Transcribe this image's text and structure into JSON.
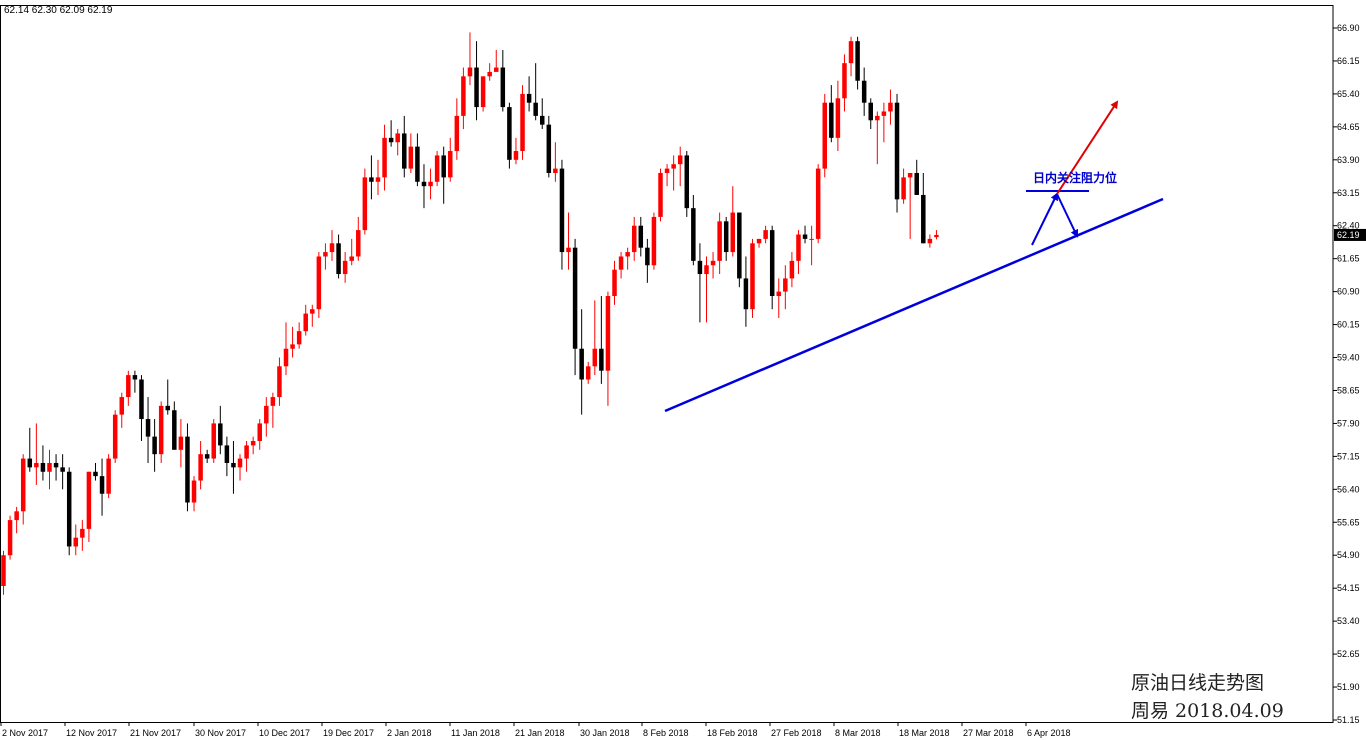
{
  "ohlc_header": "62.14 62.30 62.09 62.19",
  "last_price_label": "62.19",
  "annotation_text": "日内关注阻力位",
  "caption_line1": "原油日线走势图",
  "caption_line2": "周易 2018.04.09",
  "colors": {
    "up": "#ff0000",
    "down": "#000000",
    "trendline": "#0000dd",
    "arrow_up": "#e00000",
    "arrow_blue": "#0000dd"
  },
  "chart_data": {
    "type": "candlestick",
    "title": "",
    "ylim": [
      51.1,
      67.3
    ],
    "yticks": [
      "66.90",
      "66.15",
      "65.40",
      "64.65",
      "63.90",
      "63.15",
      "62.40",
      "61.65",
      "60.90",
      "60.15",
      "59.40",
      "58.65",
      "57.90",
      "57.15",
      "56.40",
      "55.65",
      "54.90",
      "54.15",
      "53.40",
      "52.65",
      "51.90",
      "51.15"
    ],
    "xticks": [
      "2 Nov 2017",
      "12 Nov 2017",
      "21 Nov 2017",
      "30 Nov 2017",
      "10 Dec 2017",
      "19 Dec 2017",
      "2 Jan 2018",
      "11 Jan 2018",
      "21 Jan 2018",
      "30 Jan 2018",
      "8 Feb 2018",
      "18 Feb 2018",
      "27 Feb 2018",
      "8 Mar 2018",
      "18 Mar 2018",
      "27 Mar 2018",
      "6 Apr 2018"
    ],
    "candles": [
      [
        54.2,
        55.0,
        54.0,
        54.9
      ],
      [
        54.9,
        55.8,
        54.8,
        55.7
      ],
      [
        55.7,
        56.0,
        55.4,
        55.9
      ],
      [
        55.9,
        57.2,
        55.6,
        57.1
      ],
      [
        57.1,
        57.8,
        56.8,
        56.9
      ],
      [
        56.9,
        57.9,
        56.5,
        57.0
      ],
      [
        57.0,
        57.4,
        56.6,
        56.8
      ],
      [
        56.8,
        57.3,
        56.4,
        57.0
      ],
      [
        57.0,
        57.2,
        56.6,
        56.9
      ],
      [
        56.9,
        57.2,
        56.4,
        56.8
      ],
      [
        56.8,
        56.9,
        54.9,
        55.1
      ],
      [
        55.1,
        55.6,
        54.9,
        55.3
      ],
      [
        55.3,
        55.7,
        55.0,
        55.5
      ],
      [
        55.5,
        56.8,
        55.2,
        56.8
      ],
      [
        56.8,
        57.0,
        56.6,
        56.7
      ],
      [
        56.7,
        57.1,
        55.8,
        56.3
      ],
      [
        56.3,
        57.2,
        56.2,
        57.1
      ],
      [
        57.1,
        58.2,
        57.0,
        58.1
      ],
      [
        58.1,
        58.6,
        57.8,
        58.5
      ],
      [
        58.5,
        59.1,
        58.3,
        59.0
      ],
      [
        59.0,
        59.1,
        58.6,
        58.9
      ],
      [
        58.9,
        59.0,
        57.5,
        58.0
      ],
      [
        58.0,
        58.5,
        57.0,
        57.6
      ],
      [
        57.6,
        58.0,
        56.8,
        57.2
      ],
      [
        57.2,
        58.4,
        57.0,
        58.3
      ],
      [
        58.3,
        58.9,
        58.1,
        58.2
      ],
      [
        58.2,
        58.4,
        57.3,
        57.3
      ],
      [
        57.3,
        58.0,
        56.9,
        57.6
      ],
      [
        57.6,
        57.9,
        55.9,
        56.1
      ],
      [
        56.1,
        56.7,
        55.9,
        56.6
      ],
      [
        56.6,
        57.5,
        56.4,
        57.2
      ],
      [
        57.2,
        57.3,
        57.0,
        57.1
      ],
      [
        57.1,
        58.0,
        57.0,
        57.9
      ],
      [
        57.9,
        58.3,
        57.2,
        57.4
      ],
      [
        57.4,
        57.6,
        56.7,
        57.0
      ],
      [
        57.0,
        57.5,
        56.3,
        56.9
      ],
      [
        56.9,
        57.2,
        56.6,
        57.1
      ],
      [
        57.1,
        57.5,
        56.8,
        57.4
      ],
      [
        57.4,
        57.6,
        57.2,
        57.5
      ],
      [
        57.5,
        58.0,
        57.3,
        57.9
      ],
      [
        57.9,
        58.5,
        57.6,
        58.3
      ],
      [
        58.3,
        58.6,
        57.8,
        58.5
      ],
      [
        58.5,
        59.4,
        58.3,
        59.2
      ],
      [
        59.2,
        60.2,
        59.0,
        59.6
      ],
      [
        59.6,
        60.1,
        59.4,
        59.7
      ],
      [
        59.7,
        60.2,
        59.6,
        60.0
      ],
      [
        60.0,
        60.6,
        59.9,
        60.4
      ],
      [
        60.4,
        60.6,
        60.1,
        60.5
      ],
      [
        60.5,
        61.8,
        60.3,
        61.7
      ],
      [
        61.7,
        62.0,
        61.4,
        61.8
      ],
      [
        61.8,
        62.3,
        61.6,
        62.0
      ],
      [
        62.0,
        62.2,
        61.2,
        61.3
      ],
      [
        61.3,
        61.8,
        61.1,
        61.6
      ],
      [
        61.6,
        62.1,
        61.5,
        61.7
      ],
      [
        61.7,
        62.6,
        61.6,
        62.3
      ],
      [
        62.3,
        63.7,
        62.2,
        63.5
      ],
      [
        63.5,
        64.0,
        63.0,
        63.4
      ],
      [
        63.4,
        63.9,
        63.1,
        63.5
      ],
      [
        63.5,
        64.7,
        63.2,
        64.4
      ],
      [
        64.4,
        64.8,
        64.2,
        64.3
      ],
      [
        64.3,
        64.6,
        64.0,
        64.5
      ],
      [
        64.5,
        64.9,
        63.5,
        63.7
      ],
      [
        63.7,
        64.5,
        63.6,
        64.2
      ],
      [
        64.2,
        64.5,
        63.3,
        63.4
      ],
      [
        63.4,
        63.8,
        62.8,
        63.3
      ],
      [
        63.3,
        63.7,
        63.0,
        63.4
      ],
      [
        63.4,
        64.1,
        63.3,
        64.0
      ],
      [
        64.0,
        64.2,
        62.9,
        63.5
      ],
      [
        63.5,
        64.4,
        63.4,
        64.1
      ],
      [
        64.1,
        65.3,
        63.9,
        64.9
      ],
      [
        64.9,
        66.0,
        64.6,
        65.8
      ],
      [
        65.8,
        66.8,
        65.6,
        66.0
      ],
      [
        66.0,
        66.6,
        64.8,
        65.1
      ],
      [
        65.1,
        65.8,
        65.0,
        65.8
      ],
      [
        65.8,
        66.1,
        65.7,
        65.9
      ],
      [
        65.9,
        66.4,
        66.0,
        66.0
      ],
      [
        66.0,
        66.4,
        65.0,
        65.1
      ],
      [
        65.1,
        65.2,
        63.7,
        63.9
      ],
      [
        63.9,
        64.4,
        63.8,
        64.1
      ],
      [
        64.1,
        65.6,
        63.9,
        65.4
      ],
      [
        65.4,
        65.8,
        65.0,
        65.2
      ],
      [
        65.2,
        66.1,
        64.8,
        64.9
      ],
      [
        64.9,
        65.3,
        64.6,
        64.7
      ],
      [
        64.7,
        64.9,
        63.5,
        63.6
      ],
      [
        63.6,
        64.3,
        63.4,
        63.7
      ],
      [
        63.7,
        63.9,
        61.4,
        61.8
      ],
      [
        61.8,
        62.7,
        61.4,
        61.9
      ],
      [
        61.9,
        62.1,
        59.0,
        59.6
      ],
      [
        59.6,
        60.5,
        58.1,
        58.9
      ],
      [
        58.9,
        59.3,
        58.8,
        59.2
      ],
      [
        59.2,
        60.7,
        59.0,
        59.6
      ],
      [
        59.6,
        60.8,
        58.8,
        59.1
      ],
      [
        59.1,
        60.9,
        58.3,
        60.8
      ],
      [
        60.8,
        61.6,
        60.6,
        61.4
      ],
      [
        61.4,
        61.8,
        61.2,
        61.7
      ],
      [
        61.7,
        61.9,
        61.4,
        61.8
      ],
      [
        61.8,
        62.6,
        61.6,
        62.4
      ],
      [
        62.4,
        62.6,
        61.7,
        61.9
      ],
      [
        61.9,
        62.1,
        61.1,
        61.5
      ],
      [
        61.5,
        62.7,
        61.4,
        62.6
      ],
      [
        62.6,
        63.7,
        62.5,
        63.6
      ],
      [
        63.6,
        63.8,
        63.3,
        63.7
      ],
      [
        63.7,
        64.0,
        63.2,
        63.8
      ],
      [
        63.8,
        64.2,
        63.3,
        64.0
      ],
      [
        64.0,
        64.1,
        62.6,
        62.8
      ],
      [
        62.8,
        63.1,
        61.5,
        61.6
      ],
      [
        61.6,
        62.0,
        60.2,
        61.3
      ],
      [
        61.3,
        61.7,
        60.2,
        61.5
      ],
      [
        61.5,
        61.8,
        61.2,
        61.6
      ],
      [
        61.6,
        62.7,
        61.3,
        62.5
      ],
      [
        62.5,
        62.6,
        61.6,
        61.8
      ],
      [
        61.8,
        63.3,
        61.7,
        62.7
      ],
      [
        62.7,
        62.7,
        61.0,
        61.2
      ],
      [
        61.2,
        61.7,
        60.1,
        60.5
      ],
      [
        60.5,
        62.1,
        60.3,
        62.0
      ],
      [
        62.0,
        62.1,
        61.9,
        62.1
      ],
      [
        62.1,
        62.4,
        62.0,
        62.3
      ],
      [
        62.3,
        62.4,
        60.5,
        60.8
      ],
      [
        60.8,
        61.2,
        60.3,
        60.9
      ],
      [
        60.9,
        61.5,
        60.5,
        61.2
      ],
      [
        61.2,
        61.8,
        61.0,
        61.6
      ],
      [
        61.6,
        62.3,
        61.3,
        62.2
      ],
      [
        62.2,
        62.4,
        62.0,
        62.1
      ],
      [
        62.1,
        62.4,
        61.5,
        62.1
      ],
      [
        62.1,
        63.8,
        62.0,
        63.7
      ],
      [
        63.7,
        65.4,
        63.5,
        65.2
      ],
      [
        65.2,
        65.6,
        64.3,
        64.4
      ],
      [
        64.4,
        65.7,
        64.1,
        65.3
      ],
      [
        65.3,
        66.3,
        65.0,
        66.1
      ],
      [
        66.1,
        66.7,
        65.8,
        66.6
      ],
      [
        66.6,
        66.7,
        65.5,
        65.7
      ],
      [
        65.7,
        66.0,
        64.9,
        65.2
      ],
      [
        65.2,
        65.3,
        64.6,
        64.8
      ],
      [
        64.8,
        65.0,
        63.8,
        64.9
      ],
      [
        64.9,
        65.2,
        64.3,
        65.0
      ],
      [
        65.0,
        65.5,
        64.7,
        65.2
      ],
      [
        65.2,
        65.4,
        62.7,
        63.0
      ],
      [
        63.0,
        63.7,
        62.9,
        63.5
      ],
      [
        63.5,
        63.6,
        62.1,
        63.6
      ],
      [
        63.6,
        63.9,
        63.1,
        63.1
      ],
      [
        63.1,
        63.6,
        62.0,
        62.0
      ],
      [
        62.0,
        62.2,
        61.9,
        62.1
      ],
      [
        62.14,
        62.3,
        62.09,
        62.19
      ]
    ],
    "trendline_label": "",
    "annotation": "日内关注阻力位",
    "current_price": 62.19
  }
}
